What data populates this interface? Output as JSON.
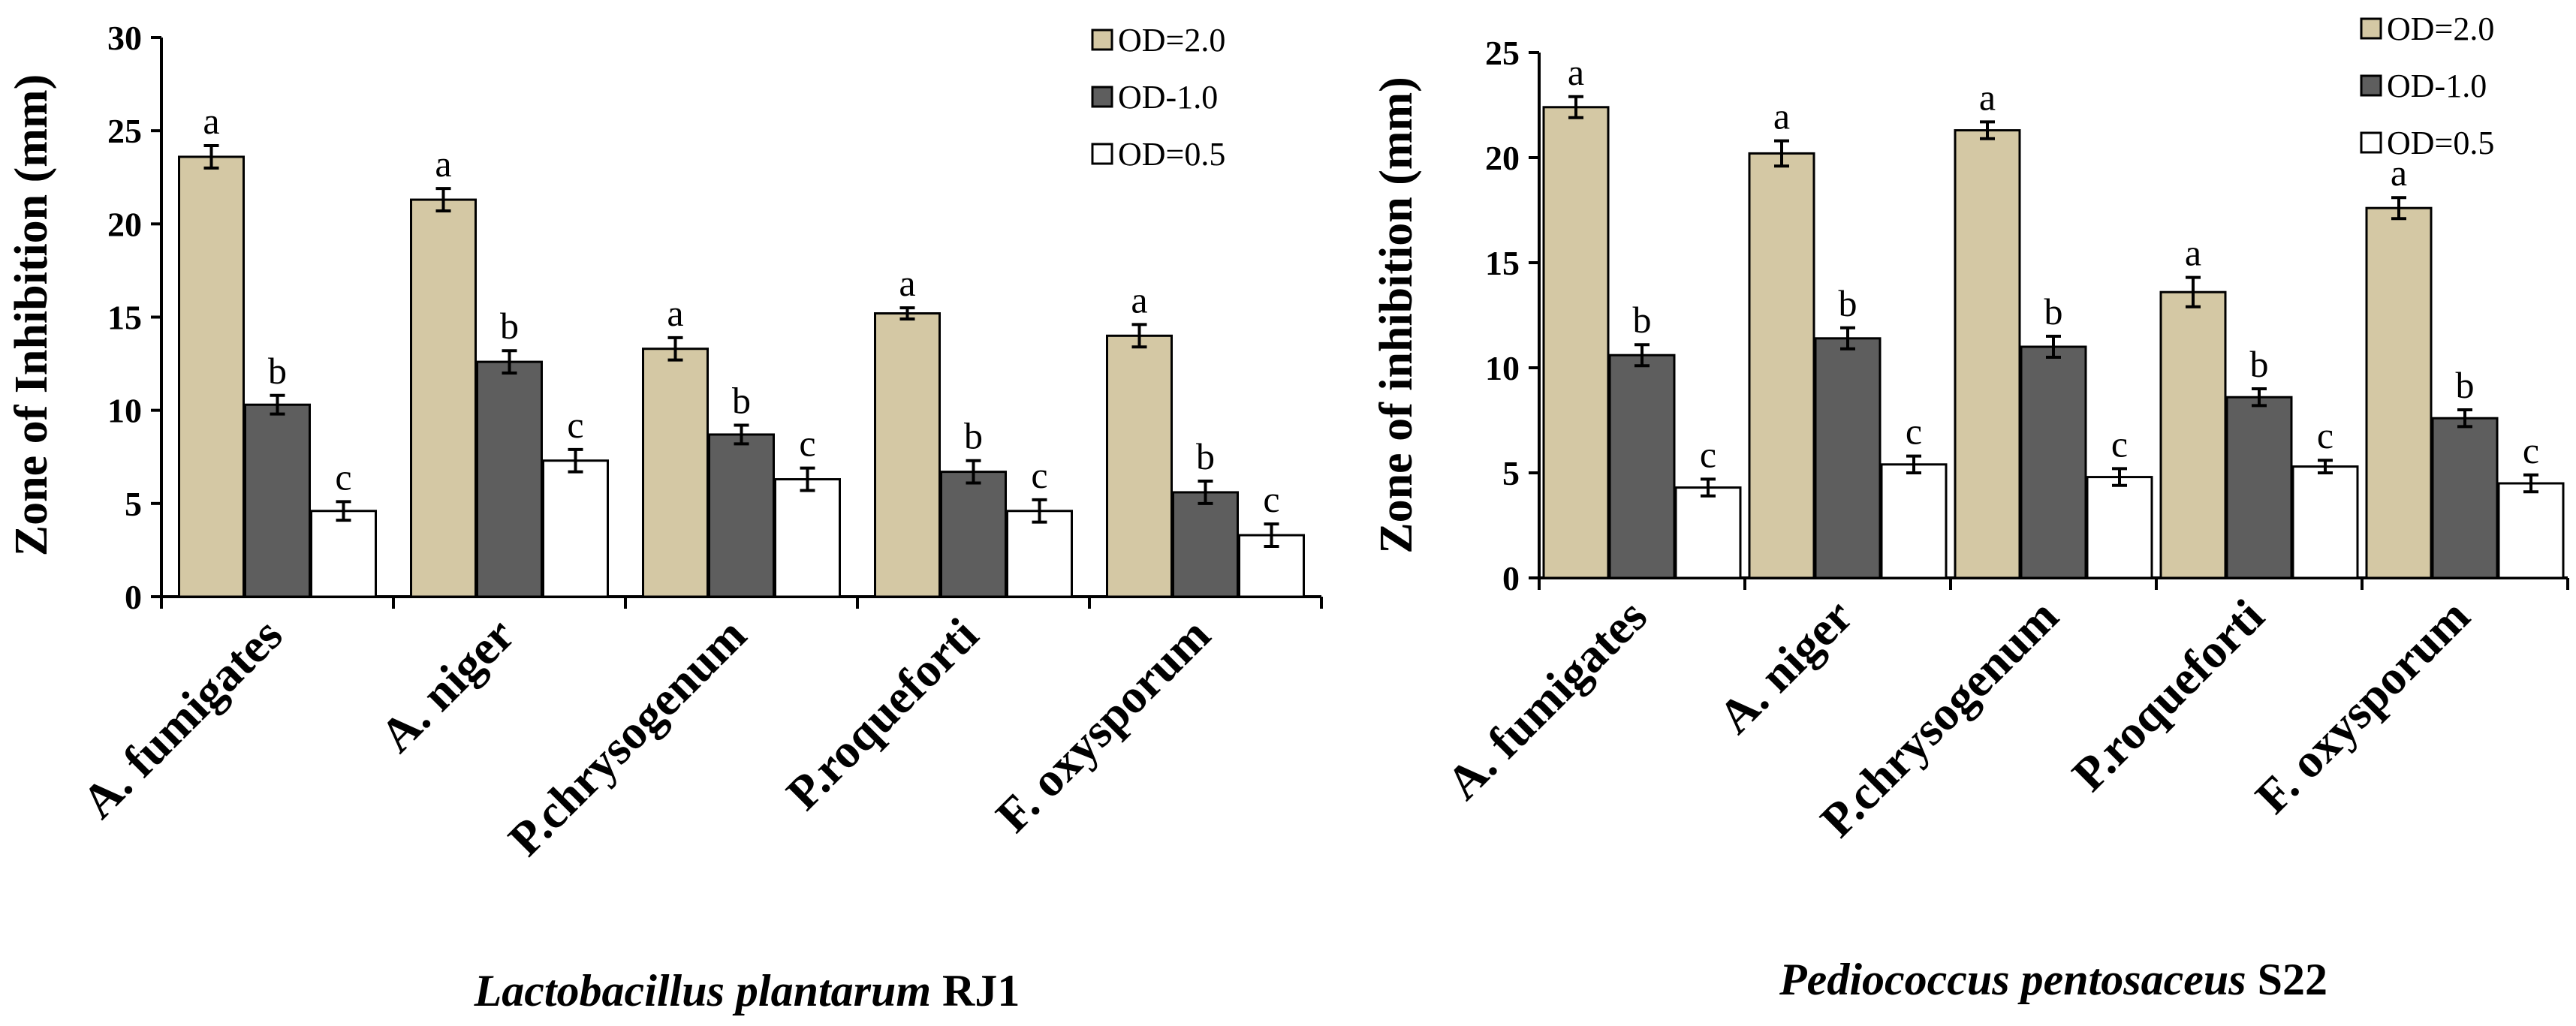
{
  "colors": {
    "od20": "#d4c8a4",
    "od10": "#5e5e5e",
    "od05": "#ffffff",
    "axis": "#000000"
  },
  "chart_data": [
    {
      "type": "bar",
      "caption_species": "Lactobacillus plantarum",
      "caption_strain": "RJ1",
      "ylabel": "Zone of Inhibition (mm)",
      "ylim": [
        0,
        30
      ],
      "yticks": [
        0,
        5,
        10,
        15,
        20,
        25,
        30
      ],
      "legend_position": "top-right",
      "categories": [
        "A. fumigates",
        "A. niger",
        "P.chrysogenum",
        "P.roqueforti",
        "F. oxysporum"
      ],
      "series": [
        {
          "name": "OD=2.0",
          "values": [
            23.6,
            21.3,
            13.3,
            15.2,
            14.0
          ],
          "errors": [
            0.6,
            0.6,
            0.6,
            0.3,
            0.6
          ],
          "letters": [
            "a",
            "a",
            "a",
            "a",
            "a"
          ]
        },
        {
          "name": "OD-1.0",
          "values": [
            10.3,
            12.6,
            8.7,
            6.7,
            5.6
          ],
          "errors": [
            0.5,
            0.6,
            0.5,
            0.6,
            0.6
          ],
          "letters": [
            "b",
            "b",
            "b",
            "b",
            "b"
          ]
        },
        {
          "name": "OD=0.5",
          "values": [
            4.6,
            7.3,
            6.3,
            4.6,
            3.3
          ],
          "errors": [
            0.5,
            0.6,
            0.6,
            0.6,
            0.6
          ],
          "letters": [
            "c",
            "c",
            "c",
            "c",
            "c"
          ]
        }
      ]
    },
    {
      "type": "bar",
      "caption_species": "Pediococcus pentosaceus",
      "caption_strain": "S22",
      "ylabel": "Zone of inhibition (mm)",
      "ylim": [
        0,
        25
      ],
      "yticks": [
        0,
        5,
        10,
        15,
        20,
        25
      ],
      "legend_position": "top-right",
      "categories": [
        "A. fumigates",
        "A. niger",
        "P.chrysogenum",
        "P.roqueforti",
        "F. oxysporum"
      ],
      "series": [
        {
          "name": "OD=2.0",
          "values": [
            22.4,
            20.2,
            21.3,
            13.6,
            17.6
          ],
          "errors": [
            0.5,
            0.6,
            0.4,
            0.7,
            0.5
          ],
          "letters": [
            "a",
            "a",
            "a",
            "a",
            "a"
          ]
        },
        {
          "name": "OD-1.0",
          "values": [
            10.6,
            11.4,
            11.0,
            8.6,
            7.6
          ],
          "errors": [
            0.5,
            0.5,
            0.5,
            0.4,
            0.4
          ],
          "letters": [
            "b",
            "b",
            "b",
            "b",
            "b"
          ]
        },
        {
          "name": "OD=0.5",
          "values": [
            4.3,
            5.4,
            4.8,
            5.3,
            4.5
          ],
          "errors": [
            0.4,
            0.4,
            0.4,
            0.3,
            0.4
          ],
          "letters": [
            "c",
            "c",
            "c",
            "c",
            "c"
          ]
        }
      ]
    }
  ]
}
